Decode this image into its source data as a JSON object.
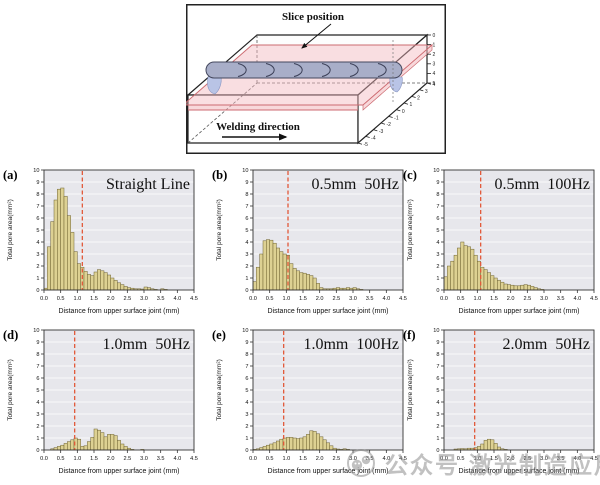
{
  "diagram": {
    "slice_label": "Slice position",
    "welding_label": "Welding direction",
    "depth_ticks": [
      "0",
      "1",
      "2",
      "3",
      "4",
      "5"
    ],
    "width_ticks": [
      "4",
      "3",
      "2",
      "1",
      "0",
      "-1",
      "-2",
      "-3",
      "-4",
      "-5"
    ]
  },
  "watermark": {
    "logo_icon": "wechat-official-account-logo",
    "account_label": "公众号",
    "account_name": "激光制造应用LIMA"
  },
  "chart_style": {
    "plot_bg": "#e7e7ec",
    "grid": "#ffffff",
    "bar_fill": "#ddd193",
    "bar_edge": "#6e6230",
    "dash": "#e2593a",
    "frame": "#333333",
    "text": "#111111"
  },
  "chart_data": {
    "type": "bar",
    "common": {
      "xlabel": "Distance from upper surface joint (mm)",
      "ylabel": "Total pore area(mm²)",
      "xlim": [
        0,
        4.5
      ],
      "ylim": [
        0,
        10
      ],
      "bin_width": 0.1,
      "xticks": [
        "0.0",
        "0.5",
        "1.0",
        "1.5",
        "2.0",
        "2.5",
        "3.0",
        "3.5",
        "4.0",
        "4.5"
      ],
      "yticks": [
        0,
        1,
        2,
        3,
        4,
        5,
        6,
        7,
        8,
        9,
        10
      ],
      "grid": "horizontal-white",
      "legend": "none"
    },
    "panels": [
      {
        "panel": "(a)",
        "title": "Straight Line",
        "dashed_line_x": 1.15,
        "values": [
          0.15,
          3.6,
          5.7,
          7.5,
          8.4,
          8.5,
          7.8,
          6.2,
          4.8,
          3.2,
          2.2,
          1.9,
          1.55,
          1.3,
          1.2,
          1.5,
          1.7,
          1.6,
          1.45,
          1.25,
          1.0,
          0.8,
          0.6,
          0.45,
          0.3,
          0.2,
          0.15,
          0.1,
          0.1,
          0.08,
          0.25,
          0.2,
          0.1,
          0.05,
          0,
          0.1,
          0.05,
          0,
          0,
          0,
          0,
          0,
          0,
          0,
          0
        ]
      },
      {
        "panel": "(b)",
        "title": "0.5mm  50Hz",
        "dashed_line_x": 1.05,
        "values": [
          0.7,
          1.9,
          3.0,
          4.1,
          4.2,
          4.15,
          3.9,
          3.5,
          3.2,
          3.0,
          2.9,
          2.2,
          1.8,
          1.6,
          1.45,
          1.4,
          1.3,
          1.2,
          1.0,
          0.55,
          0.2,
          0.1,
          0.1,
          0.1,
          0.15,
          0.2,
          0.15,
          0.15,
          0.2,
          0.15,
          0.2,
          0.1,
          0.05,
          0,
          0,
          0,
          0,
          0,
          0,
          0,
          0,
          0,
          0,
          0,
          0
        ]
      },
      {
        "panel": "(c)",
        "title": "0.5mm  100Hz",
        "dashed_line_x": 1.1,
        "values": [
          1.1,
          2.0,
          2.4,
          2.9,
          3.5,
          4.0,
          3.7,
          3.6,
          3.4,
          2.9,
          2.4,
          1.9,
          1.7,
          1.45,
          1.2,
          1.0,
          0.8,
          0.65,
          0.5,
          0.45,
          0.4,
          0.35,
          0.35,
          0.4,
          0.45,
          0.4,
          0.3,
          0.2,
          0.1,
          0.05,
          0,
          0,
          0,
          0,
          0,
          0,
          0,
          0,
          0,
          0,
          0,
          0,
          0,
          0,
          0
        ]
      },
      {
        "panel": "(d)",
        "title": "1.0mm  50Hz",
        "dashed_line_x": 0.92,
        "values": [
          0,
          0,
          0.1,
          0.2,
          0.3,
          0.4,
          0.55,
          0.7,
          0.85,
          1.0,
          0.9,
          0.3,
          0.35,
          0.7,
          1.05,
          1.75,
          1.65,
          1.45,
          1.1,
          1.3,
          1.3,
          1.2,
          0.8,
          0.5,
          0.3,
          0.15,
          0.05,
          0,
          0,
          0.05,
          0,
          0,
          0,
          0,
          0,
          0,
          0,
          0,
          0,
          0,
          0,
          0,
          0,
          0,
          0
        ]
      },
      {
        "panel": "(e)",
        "title": "1.0mm  100Hz",
        "dashed_line_x": 0.92,
        "values": [
          0.05,
          0.1,
          0.2,
          0.3,
          0.4,
          0.5,
          0.6,
          0.75,
          0.9,
          1.0,
          1.05,
          1.05,
          1.0,
          0.95,
          1.0,
          1.1,
          1.3,
          1.6,
          1.55,
          1.35,
          1.1,
          0.85,
          0.6,
          0.35,
          0.15,
          0.08,
          0.05,
          0.1,
          0.05,
          0,
          0,
          0,
          0,
          0,
          0,
          0,
          0,
          0,
          0,
          0,
          0,
          0,
          0,
          0,
          0
        ]
      },
      {
        "panel": "(f)",
        "title": "2.0mm  50Hz",
        "dashed_line_x": 0.92,
        "values": [
          0,
          0,
          0,
          0.08,
          0.1,
          0.12,
          0.1,
          0.15,
          0.15,
          0.2,
          0.3,
          0.5,
          0.8,
          0.9,
          0.85,
          0.55,
          0.25,
          0.1,
          0.05,
          0,
          0,
          0,
          0,
          0,
          0,
          0,
          0,
          0,
          0,
          0,
          0,
          0,
          0,
          0,
          0,
          0,
          0,
          0,
          0,
          0,
          0,
          0,
          0,
          0,
          0
        ]
      }
    ]
  }
}
